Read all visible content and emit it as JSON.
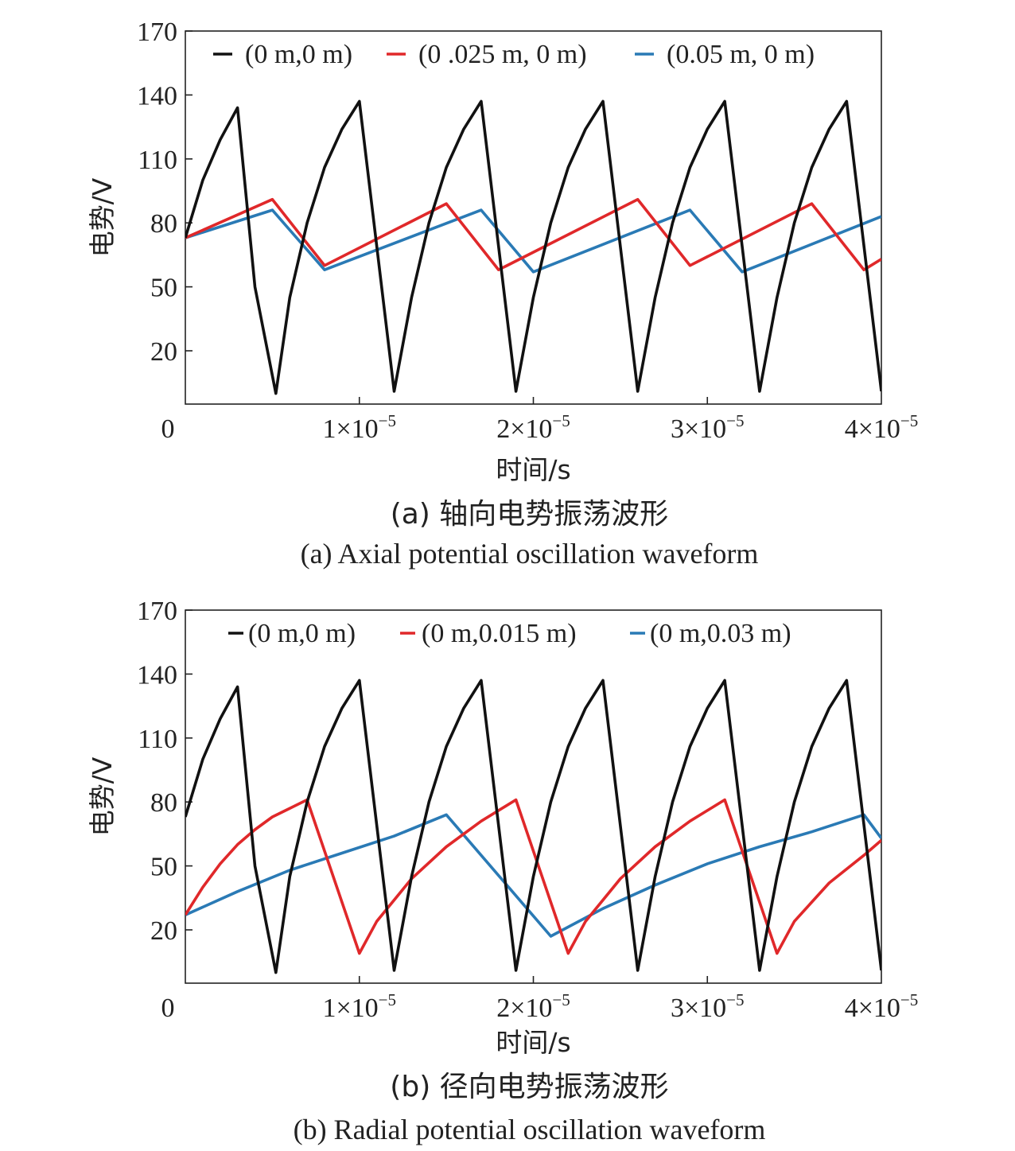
{
  "chart_data": [
    {
      "type": "line",
      "xlabel": "时间/s",
      "ylabel": "电势/V",
      "caption_cn": "(a) 轴向电势振荡波形",
      "caption_en": "(a) Axial potential oscillation waveform",
      "xlim": [
        0,
        4e-05
      ],
      "ylim": [
        -5,
        170
      ],
      "x_ticks": [
        {
          "value": 0,
          "mantissa": "0",
          "exp": ""
        },
        {
          "value": 1e-05,
          "mantissa": "1×10",
          "exp": "−5"
        },
        {
          "value": 2e-05,
          "mantissa": "2×10",
          "exp": "−5"
        },
        {
          "value": 3e-05,
          "mantissa": "3×10",
          "exp": "−5"
        },
        {
          "value": 4e-05,
          "mantissa": "4×10",
          "exp": "−5"
        }
      ],
      "y_ticks": [
        "20",
        "50",
        "80",
        "110",
        "140",
        "170"
      ],
      "grid": false,
      "legend_position": "top",
      "series": [
        {
          "name": "(0 m,0 m)",
          "color": "#111111",
          "x": [
            0,
            1e-06,
            2e-06,
            3e-06,
            3e-06,
            4e-06,
            5.2e-06,
            6e-06,
            7e-06,
            8e-06,
            9e-06,
            1e-05,
            1.2e-05,
            1.3e-05,
            1.4e-05,
            1.5e-05,
            1.6e-05,
            1.7e-05,
            1.9e-05,
            2e-05,
            2.1e-05,
            2.2e-05,
            2.3e-05,
            2.4e-05,
            2.6e-05,
            2.7e-05,
            2.8e-05,
            2.9e-05,
            3e-05,
            3.1e-05,
            3.3e-05,
            3.4e-05,
            3.5e-05,
            3.6e-05,
            3.7e-05,
            3.8e-05,
            4e-05
          ],
          "y": [
            73,
            100,
            119,
            134,
            134,
            50,
            0,
            45,
            80,
            106,
            124,
            137,
            1,
            45,
            80,
            106,
            124,
            137,
            1,
            45,
            80,
            106,
            124,
            137,
            1,
            45,
            80,
            106,
            124,
            137,
            1,
            45,
            80,
            106,
            124,
            137,
            1
          ]
        },
        {
          "name": "(0 .025 m, 0 m)",
          "color": "#e0282a",
          "x": [
            0,
            5e-06,
            8e-06,
            1.5e-05,
            1.8e-05,
            2.6e-05,
            2.9e-05,
            3.6e-05,
            3.9e-05,
            4e-05
          ],
          "y": [
            73,
            91,
            60,
            89,
            58,
            91,
            60,
            89,
            58,
            63
          ]
        },
        {
          "name": "(0.05 m, 0 m)",
          "color": "#2a7ab5",
          "x": [
            0,
            5e-06,
            8e-06,
            1.7e-05,
            2e-05,
            2.9e-05,
            3.2e-05,
            4e-05
          ],
          "y": [
            73,
            86,
            58,
            86,
            57,
            86,
            57,
            83
          ]
        }
      ]
    },
    {
      "type": "line",
      "xlabel": "时间/s",
      "ylabel": "电势/V",
      "caption_cn": "(b) 径向电势振荡波形",
      "caption_en": "(b) Radial potential oscillation waveform",
      "xlim": [
        0,
        4e-05
      ],
      "ylim": [
        -5,
        170
      ],
      "x_ticks": [
        {
          "value": 0,
          "mantissa": "0",
          "exp": ""
        },
        {
          "value": 1e-05,
          "mantissa": "1×10",
          "exp": "−5"
        },
        {
          "value": 2e-05,
          "mantissa": "2×10",
          "exp": "−5"
        },
        {
          "value": 3e-05,
          "mantissa": "3×10",
          "exp": "−5"
        },
        {
          "value": 4e-05,
          "mantissa": "4×10",
          "exp": "−5"
        }
      ],
      "y_ticks": [
        "20",
        "50",
        "80",
        "110",
        "140",
        "170"
      ],
      "grid": false,
      "legend_position": "top",
      "series": [
        {
          "name": "(0 m,0 m)",
          "color": "#111111",
          "x": [
            0,
            1e-06,
            2e-06,
            3e-06,
            3e-06,
            4e-06,
            5.2e-06,
            6e-06,
            7e-06,
            8e-06,
            9e-06,
            1e-05,
            1.2e-05,
            1.3e-05,
            1.4e-05,
            1.5e-05,
            1.6e-05,
            1.7e-05,
            1.9e-05,
            2e-05,
            2.1e-05,
            2.2e-05,
            2.3e-05,
            2.4e-05,
            2.6e-05,
            2.7e-05,
            2.8e-05,
            2.9e-05,
            3e-05,
            3.1e-05,
            3.3e-05,
            3.4e-05,
            3.5e-05,
            3.6e-05,
            3.7e-05,
            3.8e-05,
            4e-05
          ],
          "y": [
            73,
            100,
            119,
            134,
            134,
            50,
            0,
            45,
            80,
            106,
            124,
            137,
            1,
            45,
            80,
            106,
            124,
            137,
            1,
            45,
            80,
            106,
            124,
            137,
            1,
            45,
            80,
            106,
            124,
            137,
            1,
            45,
            80,
            106,
            124,
            137,
            1
          ]
        },
        {
          "name": "(0 m,0.015 m)",
          "color": "#e0282a",
          "x": [
            0,
            1e-06,
            2e-06,
            3e-06,
            4e-06,
            5e-06,
            6e-06,
            7e-06,
            1e-05,
            1.1e-05,
            1.3e-05,
            1.5e-05,
            1.7e-05,
            1.9e-05,
            2.2e-05,
            2.3e-05,
            2.5e-05,
            2.7e-05,
            2.9e-05,
            3.1e-05,
            3.4e-05,
            3.5e-05,
            3.7e-05,
            3.9e-05,
            4e-05
          ],
          "y": [
            27,
            40,
            51,
            60,
            67,
            73,
            77,
            81,
            9,
            24,
            44,
            59,
            71,
            81,
            9,
            24,
            44,
            59,
            71,
            81,
            9,
            24,
            42,
            55,
            62
          ]
        },
        {
          "name": "(0 m,0.03 m)",
          "color": "#2a7ab5",
          "x": [
            0,
            3e-06,
            6e-06,
            9e-06,
            1.2e-05,
            1.5e-05,
            2.1e-05,
            2.4e-05,
            2.7e-05,
            3e-05,
            3.3e-05,
            3.6e-05,
            3.9e-05,
            4e-05
          ],
          "y": [
            27,
            38,
            48,
            56,
            64,
            74,
            17,
            30,
            41,
            51,
            59,
            66,
            74,
            63
          ]
        }
      ]
    }
  ]
}
